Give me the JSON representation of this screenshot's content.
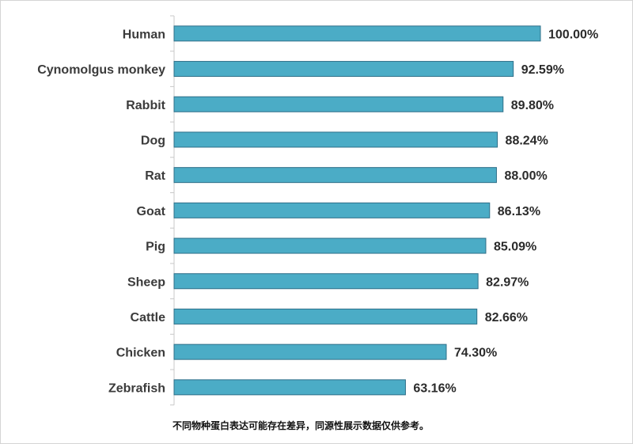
{
  "chart_data": {
    "type": "bar",
    "orientation": "horizontal",
    "categories": [
      "Human",
      "Cynomolgus monkey",
      "Rabbit",
      "Dog",
      "Rat",
      "Goat",
      "Pig",
      "Sheep",
      "Cattle",
      "Chicken",
      "Zebrafish"
    ],
    "values": [
      100.0,
      92.59,
      89.8,
      88.24,
      88.0,
      86.13,
      85.09,
      82.97,
      82.66,
      74.3,
      63.16
    ],
    "value_labels": [
      "100.00%",
      "92.59%",
      "89.80%",
      "88.24%",
      "88.00%",
      "86.13%",
      "85.09%",
      "82.97%",
      "82.66%",
      "74.30%",
      "63.16%"
    ],
    "xlim": [
      0,
      100
    ],
    "grid": false,
    "legend": "none",
    "colors": {
      "bar_fill": "#4bacc6",
      "bar_stroke": "#2f6f88",
      "axis": "#c8c8c8"
    }
  },
  "footnote": "不同物种蛋白表达可能存在差异，同源性展示数据仅供参考。"
}
